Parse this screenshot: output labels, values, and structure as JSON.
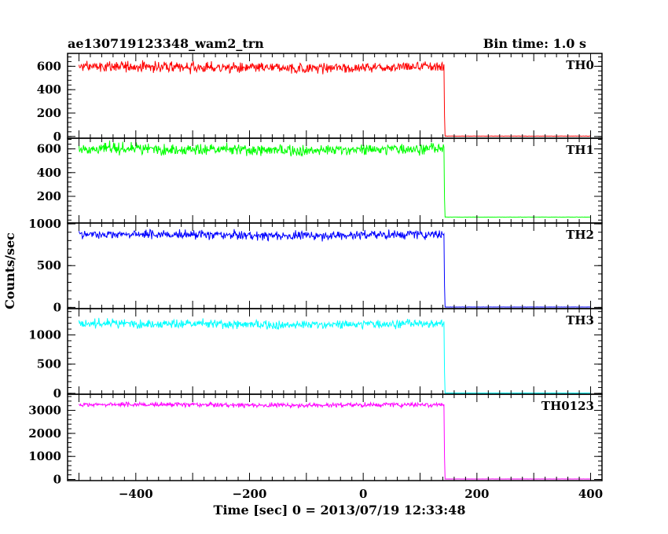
{
  "chart_data": {
    "type": "line",
    "title": "ae130719123348_wam2_trn",
    "bin_label": "Bin time: 1.0 s",
    "xlabel": "Time [sec] 0 = 2013/07/19 12:33:48",
    "ylabel": "Counts/sec",
    "xlim": [
      -520,
      420
    ],
    "xticks": [
      -400,
      -200,
      0,
      200,
      400
    ],
    "x_step_sec": 1,
    "drop_time": 143,
    "panels": [
      {
        "name": "TH0",
        "color": "#ff0000",
        "ylim": [
          -15,
          710
        ],
        "yticks": [
          0,
          200,
          400,
          600
        ],
        "mean_before": 590,
        "noise": 25,
        "mean_after": 3
      },
      {
        "name": "TH1",
        "color": "#00ff00",
        "ylim": [
          -25,
          690
        ],
        "yticks": [
          200,
          400,
          600
        ],
        "mean_before": 595,
        "noise": 25,
        "mean_after": 25
      },
      {
        "name": "TH2",
        "color": "#0000ff",
        "ylim": [
          -15,
          1010
        ],
        "yticks": [
          0,
          500,
          1000
        ],
        "mean_before": 868,
        "noise": 30,
        "mean_after": 4
      },
      {
        "name": "TH3",
        "color": "#00ffff",
        "ylim": [
          -15,
          1450
        ],
        "yticks": [
          0,
          500,
          1000
        ],
        "mean_before": 1185,
        "noise": 40,
        "mean_after": 6
      },
      {
        "name": "TH0123",
        "color": "#ff00ff",
        "ylim": [
          -50,
          3700
        ],
        "yticks": [
          0,
          1000,
          2000,
          3000
        ],
        "mean_before": 3240,
        "noise": 55,
        "mean_after": 20
      }
    ]
  }
}
